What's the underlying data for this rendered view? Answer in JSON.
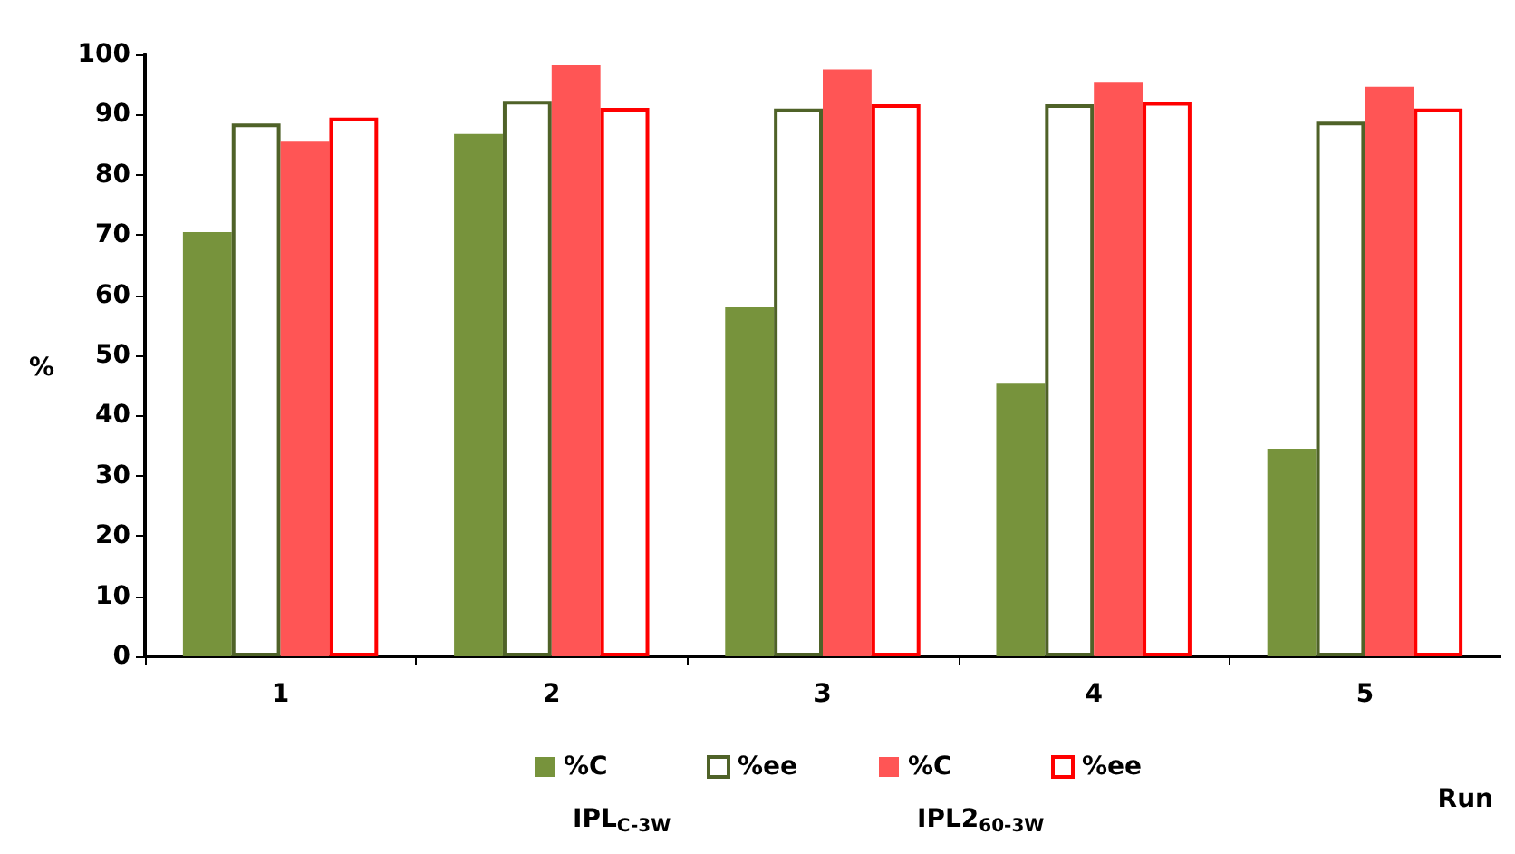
{
  "chart_data": {
    "type": "bar",
    "xlabel": "Run",
    "ylabel": "%",
    "categories": [
      "1",
      "2",
      "3",
      "4",
      "5"
    ],
    "series": [
      {
        "name": "%C",
        "color": "#77933c",
        "values": [
          70.5,
          86.8,
          58,
          45.3,
          34.5
        ]
      },
      {
        "name": "%ee",
        "color": "#4f6228",
        "values": [
          88.5,
          92.3,
          91,
          91.7,
          88.8
        ]
      },
      {
        "name": "%C",
        "color": "#ff5555",
        "values": [
          85.5,
          98.2,
          97.5,
          95.3,
          94.6
        ]
      },
      {
        "name": "%ee",
        "color": "#ff0000",
        "values": [
          89.5,
          91.1,
          91.7,
          92.1,
          91
        ]
      }
    ],
    "annotations": [
      "IPL$_{C-3W}$",
      "IPL2$_{60-3W}$"
    ],
    "ylim": [
      0,
      100
    ],
    "yticks": [
      0,
      10,
      20,
      30,
      40,
      50,
      60,
      70,
      80,
      90,
      100
    ],
    "grid": false,
    "legend": "bottom"
  }
}
